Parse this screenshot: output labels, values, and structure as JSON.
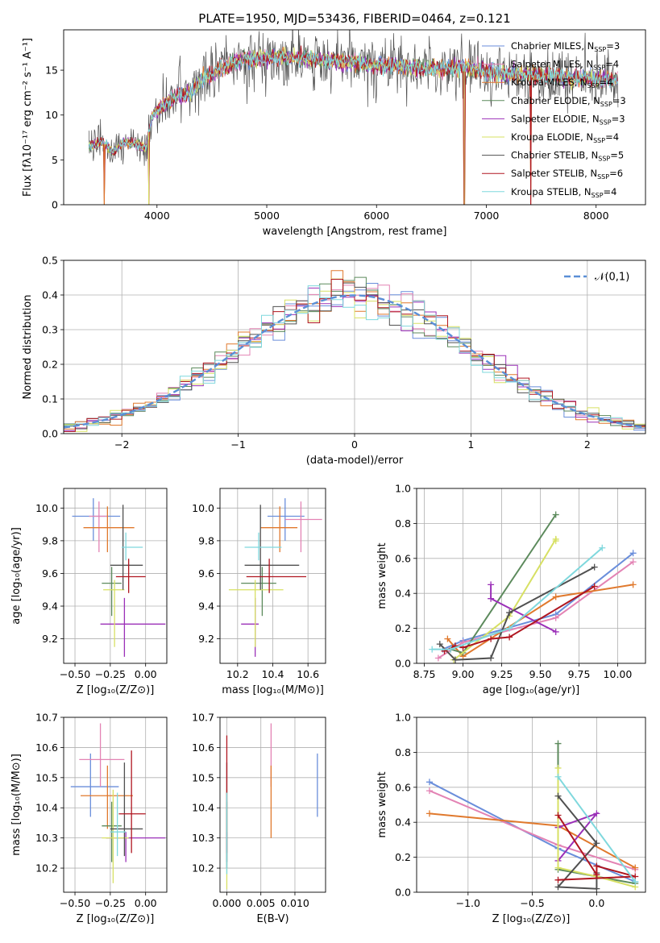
{
  "figure": {
    "title": "PLATE=1950, MJD=53436, FIBERID=0464, z=0.121"
  },
  "series": [
    {
      "name": "Chabrier MILES",
      "nssp": "3",
      "color": "#6a8edb"
    },
    {
      "name": "Salpeter MILES",
      "nssp": "4",
      "color": "#e383b4"
    },
    {
      "name": "Kroupa MILES",
      "nssp": "4",
      "color": "#e0792d"
    },
    {
      "name": "Chabrier ELODIE",
      "nssp": "3",
      "color": "#5c8a5c"
    },
    {
      "name": "Salpeter ELODIE",
      "nssp": "3",
      "color": "#9b30b8"
    },
    {
      "name": "Kroupa ELODIE",
      "nssp": "4",
      "color": "#d7e063"
    },
    {
      "name": "Chabrier STELIB",
      "nssp": "5",
      "color": "#505050"
    },
    {
      "name": "Salpeter STELIB",
      "nssp": "6",
      "color": "#b01620"
    },
    {
      "name": "Kroupa STELIB",
      "nssp": "4",
      "color": "#7fd8dd"
    }
  ],
  "chart_data": [
    {
      "id": "spectrum",
      "type": "line",
      "xlabel": "wavelength [Angstrom, rest frame]",
      "ylabel": "Flux [fλ10⁻¹⁷ erg cm⁻² s⁻¹ A⁻¹]",
      "xlim": [
        3150,
        8450
      ],
      "ylim": [
        0,
        19.5
      ],
      "xticks": [
        4000,
        5000,
        6000,
        7000,
        8000
      ],
      "yticks": [
        0,
        5,
        10,
        15
      ],
      "legend": "top-right",
      "grid": false,
      "continuum": {
        "x": [
          3380,
          3500,
          3600,
          3700,
          3800,
          3900,
          3950,
          4000,
          4100,
          4200,
          4300,
          4400,
          4500,
          4600,
          4700,
          4800,
          4900,
          5000,
          5200,
          5400,
          5600,
          5800,
          6000,
          6200,
          6400,
          6600,
          6800,
          7000,
          7200,
          7400,
          7600,
          7800,
          8000,
          8200
        ],
        "y": [
          6.5,
          7.0,
          5.8,
          7.0,
          6.8,
          6.3,
          9.8,
          10.5,
          11.5,
          12.2,
          12.5,
          14.0,
          14.5,
          15.3,
          15.8,
          16.3,
          16.2,
          16.5,
          16.5,
          16.2,
          16.0,
          15.8,
          15.5,
          15.6,
          15.3,
          15.1,
          15.3,
          14.8,
          14.6,
          14.5,
          14.4,
          14.2,
          14.1,
          14.0
        ]
      },
      "dropouts": [
        3520,
        3925,
        6800,
        7405
      ]
    },
    {
      "id": "residuals",
      "type": "histogram",
      "xlabel": "(data-model)/error",
      "ylabel": "Normed distribution",
      "xlim": [
        -2.5,
        2.5
      ],
      "ylim": [
        0,
        0.5
      ],
      "xticks": [
        -2,
        -1,
        0,
        1,
        2
      ],
      "yticks": [
        0.0,
        0.1,
        0.2,
        0.3,
        0.4,
        0.5
      ],
      "grid": true,
      "legend": "top-right",
      "reference_label": "𝒩(0,1)",
      "bins": 50
    },
    {
      "id": "age-vs-Z",
      "type": "scatter",
      "xlabel": "Z [log₁₀(Z/Z⊙)]",
      "ylabel": "age  [log₁₀(age/yr)]",
      "xlim": [
        -0.58,
        0.15
      ],
      "ylim": [
        9.05,
        10.12
      ],
      "xticks": [
        -0.5,
        -0.25,
        0.0
      ],
      "yticks": [
        9.2,
        9.4,
        9.6,
        9.8,
        10.0
      ],
      "grid": true,
      "points": [
        {
          "x": -0.37,
          "y": 9.95,
          "xlo": -0.52,
          "xhi": -0.18,
          "ylo": 9.8,
          "yhi": 10.06
        },
        {
          "x": -0.33,
          "y": 9.95,
          "xlo": -0.4,
          "xhi": -0.27,
          "ylo": 9.73,
          "yhi": 10.04
        },
        {
          "x": -0.27,
          "y": 9.88,
          "xlo": -0.44,
          "xhi": -0.08,
          "ylo": 9.73,
          "yhi": 10.01
        },
        {
          "x": -0.24,
          "y": 9.54,
          "xlo": -0.31,
          "xhi": -0.17,
          "ylo": 9.34,
          "yhi": 9.64
        },
        {
          "x": -0.15,
          "y": 9.29,
          "xlo": -0.32,
          "xhi": 0.14,
          "ylo": 9.09,
          "yhi": 9.45
        },
        {
          "x": -0.22,
          "y": 9.5,
          "xlo": -0.3,
          "xhi": -0.15,
          "ylo": 9.15,
          "yhi": 9.56
        },
        {
          "x": -0.16,
          "y": 9.65,
          "xlo": -0.25,
          "xhi": -0.02,
          "ylo": 9.5,
          "yhi": 10.02
        },
        {
          "x": -0.12,
          "y": 9.58,
          "xlo": -0.21,
          "xhi": 0.0,
          "ylo": 9.48,
          "yhi": 9.69
        },
        {
          "x": -0.14,
          "y": 9.76,
          "xlo": -0.17,
          "xhi": -0.02,
          "ylo": 9.68,
          "yhi": 9.85
        }
      ]
    },
    {
      "id": "age-vs-mass",
      "type": "scatter",
      "xlabel": "mass [log₁₀(M/M⊙)]",
      "ylabel": "",
      "xlim": [
        10.1,
        10.7
      ],
      "ylim": [
        9.05,
        10.12
      ],
      "xticks": [
        10.2,
        10.4,
        10.6
      ],
      "yticks": [
        9.2,
        9.4,
        9.6,
        9.8,
        10.0
      ],
      "grid": true,
      "points": [
        {
          "x": 10.47,
          "y": 9.95,
          "xlo": 10.37,
          "xhi": 10.58,
          "ylo": 9.8,
          "yhi": 10.06
        },
        {
          "x": 10.56,
          "y": 9.93,
          "xlo": 10.47,
          "xhi": 10.68,
          "ylo": 9.73,
          "yhi": 10.04
        },
        {
          "x": 10.44,
          "y": 9.88,
          "xlo": 10.33,
          "xhi": 10.54,
          "ylo": 9.73,
          "yhi": 10.01
        },
        {
          "x": 10.34,
          "y": 9.54,
          "xlo": 10.22,
          "xhi": 10.42,
          "ylo": 9.34,
          "yhi": 9.64
        },
        {
          "x": 10.3,
          "y": 9.29,
          "xlo": 10.22,
          "xhi": 10.32,
          "ylo": 9.09,
          "yhi": 9.45
        },
        {
          "x": 10.3,
          "y": 9.5,
          "xlo": 10.15,
          "xhi": 10.46,
          "ylo": 9.15,
          "yhi": 9.56
        },
        {
          "x": 10.33,
          "y": 9.65,
          "xlo": 10.24,
          "xhi": 10.55,
          "ylo": 9.5,
          "yhi": 10.02
        },
        {
          "x": 10.38,
          "y": 9.58,
          "xlo": 10.25,
          "xhi": 10.59,
          "ylo": 9.48,
          "yhi": 9.69
        },
        {
          "x": 10.32,
          "y": 9.76,
          "xlo": 10.24,
          "xhi": 10.45,
          "ylo": 9.68,
          "yhi": 9.85
        }
      ]
    },
    {
      "id": "mass-weight-vs-age",
      "type": "line",
      "xlabel": "age  [log₁₀(age/yr)]",
      "ylabel": "mass weight",
      "xlim": [
        8.7,
        10.18
      ],
      "ylim": [
        0,
        1
      ],
      "xticks": [
        8.75,
        9.0,
        9.25,
        9.5,
        9.75,
        10.0
      ],
      "yticks": [
        0.0,
        0.2,
        0.4,
        0.6,
        0.8,
        1.0
      ],
      "grid": true,
      "lines": [
        {
          "x": [
            8.87,
            9.0,
            9.6,
            10.1
          ],
          "y": [
            0.08,
            0.13,
            0.28,
            0.63
          ]
        },
        {
          "x": [
            8.84,
            9.0,
            9.6,
            10.1
          ],
          "y": [
            0.03,
            0.12,
            0.26,
            0.58
          ]
        },
        {
          "x": [
            8.9,
            9.0,
            9.6,
            10.1
          ],
          "y": [
            0.14,
            0.04,
            0.38,
            0.45
          ]
        },
        {
          "x": [
            8.92,
            9.0,
            9.6
          ],
          "y": [
            0.08,
            0.06,
            0.85
          ]
        },
        {
          "x": [
            9.18,
            9.18,
            9.6
          ],
          "y": [
            0.45,
            0.37,
            0.18
          ]
        },
        {
          "x": [
            8.94,
            9.3,
            9.6,
            9.6
          ],
          "y": [
            0.02,
            0.27,
            0.71,
            0.7
          ]
        },
        {
          "x": [
            8.85,
            8.95,
            9.18,
            9.3,
            9.85
          ],
          "y": [
            0.11,
            0.02,
            0.03,
            0.29,
            0.55
          ]
        },
        {
          "x": [
            8.88,
            8.95,
            9.0,
            9.18,
            9.3,
            9.85
          ],
          "y": [
            0.07,
            0.1,
            0.09,
            0.14,
            0.15,
            0.44
          ]
        },
        {
          "x": [
            8.8,
            8.92,
            9.3,
            9.9
          ],
          "y": [
            0.08,
            0.08,
            0.2,
            0.66
          ]
        }
      ]
    },
    {
      "id": "mass-vs-Z",
      "type": "scatter",
      "xlabel": "Z [log₁₀(Z/Z⊙)]",
      "ylabel": "mass [log₁₀(M/M⊙)]",
      "xlim": [
        -0.58,
        0.15
      ],
      "ylim": [
        10.12,
        10.7
      ],
      "xticks": [
        -0.5,
        -0.25,
        0.0
      ],
      "yticks": [
        10.2,
        10.3,
        10.4,
        10.5,
        10.6,
        10.7
      ],
      "grid": true,
      "points": [
        {
          "x": -0.39,
          "y": 10.47,
          "xlo": -0.53,
          "xhi": -0.19,
          "ylo": 10.37,
          "yhi": 10.58
        },
        {
          "x": -0.32,
          "y": 10.56,
          "xlo": -0.47,
          "xhi": -0.15,
          "ylo": 10.47,
          "yhi": 10.68
        },
        {
          "x": -0.27,
          "y": 10.44,
          "xlo": -0.46,
          "xhi": -0.09,
          "ylo": 10.33,
          "yhi": 10.54
        },
        {
          "x": -0.24,
          "y": 10.34,
          "xlo": -0.31,
          "xhi": -0.17,
          "ylo": 10.22,
          "yhi": 10.42
        },
        {
          "x": -0.14,
          "y": 10.3,
          "xlo": -0.28,
          "xhi": 0.14,
          "ylo": 10.22,
          "yhi": 10.32
        },
        {
          "x": -0.23,
          "y": 10.3,
          "xlo": -0.31,
          "xhi": -0.12,
          "ylo": 10.15,
          "yhi": 10.46
        },
        {
          "x": -0.15,
          "y": 10.33,
          "xlo": -0.25,
          "xhi": -0.02,
          "ylo": 10.24,
          "yhi": 10.55
        },
        {
          "x": -0.1,
          "y": 10.38,
          "xlo": -0.19,
          "xhi": 0.0,
          "ylo": 10.25,
          "yhi": 10.59
        },
        {
          "x": -0.2,
          "y": 10.32,
          "xlo": -0.25,
          "xhi": -0.14,
          "ylo": 10.24,
          "yhi": 10.45
        }
      ]
    },
    {
      "id": "mass-vs-ebv",
      "type": "scatter",
      "xlabel": "E(B-V)",
      "ylabel": "",
      "xlim": [
        -0.001,
        0.0145
      ],
      "ylim": [
        10.12,
        10.7
      ],
      "xticks": [
        0.0,
        0.005,
        0.01
      ],
      "tick_labels": [
        "0.000",
        "0.005",
        "0.010"
      ],
      "yticks": [
        10.2,
        10.3,
        10.4,
        10.5,
        10.6,
        10.7
      ],
      "grid": true,
      "points": [
        {
          "x": 0.0133,
          "ylo": 10.37,
          "yhi": 10.58
        },
        {
          "x": 0.0065,
          "ylo": 10.47,
          "yhi": 10.68
        },
        {
          "x": 0.0065,
          "ylo": 10.3,
          "yhi": 10.54
        },
        {
          "x": 0.0,
          "ylo": 10.22,
          "yhi": 10.42
        },
        {
          "x": 0.0,
          "ylo": 10.22,
          "yhi": 10.32
        },
        {
          "x": 0.0,
          "ylo": 10.13,
          "yhi": 10.46
        },
        {
          "x": 0.0,
          "ylo": 10.2,
          "yhi": 10.55
        },
        {
          "x": 0.0,
          "ylo": 10.25,
          "yhi": 10.64
        },
        {
          "x": 0.0,
          "ylo": 10.18,
          "yhi": 10.45
        }
      ]
    },
    {
      "id": "mass-weight-vs-Z",
      "type": "line",
      "xlabel": "Z [log₁₀(Z/Z⊙)]",
      "ylabel": "mass weight",
      "xlim": [
        -1.4,
        0.38
      ],
      "ylim": [
        0,
        1
      ],
      "xticks": [
        -1.0,
        -0.5,
        0.0
      ],
      "yticks": [
        0.0,
        0.2,
        0.4,
        0.6,
        0.8,
        1.0
      ],
      "grid": true,
      "lines": [
        {
          "x": [
            -1.3,
            -0.3,
            0.3
          ],
          "y": [
            0.63,
            0.25,
            0.06
          ]
        },
        {
          "x": [
            -1.3,
            -0.3,
            0.3
          ],
          "y": [
            0.58,
            0.27,
            0.13
          ]
        },
        {
          "x": [
            -1.3,
            -0.3,
            0.3
          ],
          "y": [
            0.45,
            0.38,
            0.14
          ]
        },
        {
          "x": [
            -0.3,
            -0.3,
            0.3
          ],
          "y": [
            0.85,
            0.13,
            0.05
          ]
        },
        {
          "x": [
            -0.3,
            0.0,
            -0.3
          ],
          "y": [
            0.18,
            0.45,
            0.37
          ]
        },
        {
          "x": [
            -0.3,
            -0.3,
            0.0,
            0.3
          ],
          "y": [
            0.71,
            0.14,
            0.09,
            0.03
          ]
        },
        {
          "x": [
            -0.3,
            0.0,
            -0.3,
            0.0,
            0.0
          ],
          "y": [
            0.55,
            0.28,
            0.03,
            0.02,
            0.11
          ]
        },
        {
          "x": [
            -0.3,
            0.0,
            0.0,
            0.3,
            -0.3
          ],
          "y": [
            0.44,
            0.1,
            0.15,
            0.09,
            0.07
          ]
        },
        {
          "x": [
            -0.3,
            0.3
          ],
          "y": [
            0.66,
            0.06
          ]
        }
      ]
    }
  ]
}
